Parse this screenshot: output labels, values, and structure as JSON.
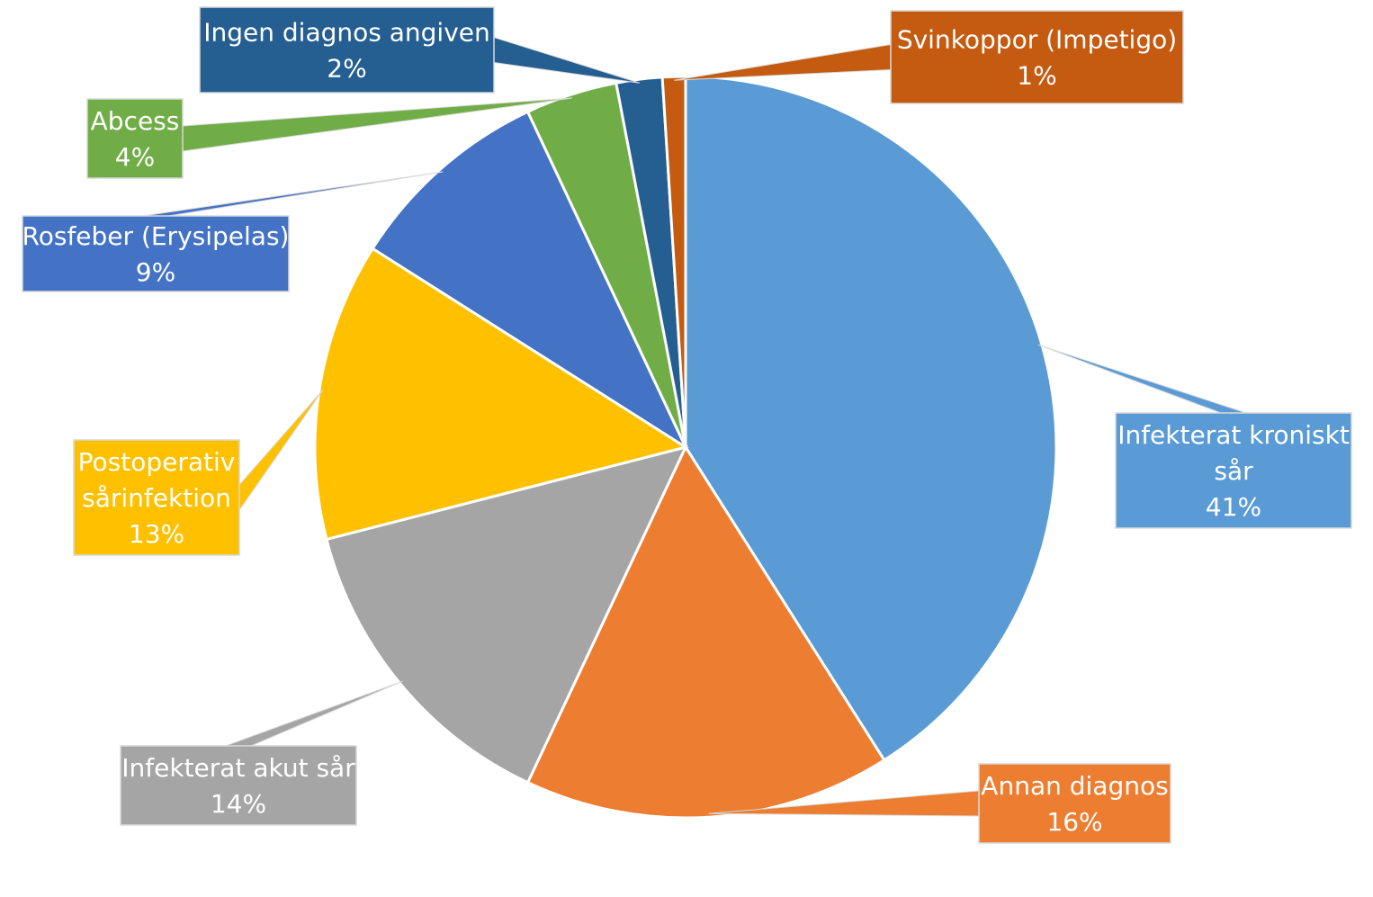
{
  "chart_data": {
    "type": "pie",
    "title": "",
    "start_angle_deg": 0,
    "direction": "clockwise",
    "slices": [
      {
        "label": "Infekterat kroniskt sår",
        "label_lines": [
          "Infekterat kroniskt",
          "sår"
        ],
        "value": 41,
        "value_label": "41%",
        "color": "#5B9BD5"
      },
      {
        "label": "Annan diagnos",
        "label_lines": [
          "Annan diagnos"
        ],
        "value": 16,
        "value_label": "16%",
        "color": "#ED7D31"
      },
      {
        "label": "Infekterat akut sår",
        "label_lines": [
          "Infekterat akut sår"
        ],
        "value": 14,
        "value_label": "14%",
        "color": "#A5A5A5"
      },
      {
        "label": "Postoperativ sårinfektion",
        "label_lines": [
          "Postoperativ",
          "sårinfektion"
        ],
        "value": 13,
        "value_label": "13%",
        "color": "#FFC000"
      },
      {
        "label": "Rosfeber (Erysipelas)",
        "label_lines": [
          "Rosfeber (Erysipelas)"
        ],
        "value": 9,
        "value_label": "9%",
        "color": "#4472C4"
      },
      {
        "label": "Abcess",
        "label_lines": [
          "Abcess"
        ],
        "value": 4,
        "value_label": "4%",
        "color": "#70AD47"
      },
      {
        "label": "Ingen diagnos angiven",
        "label_lines": [
          "Ingen diagnos angiven"
        ],
        "value": 2,
        "value_label": "2%",
        "color": "#255E91"
      },
      {
        "label": "Svinkoppor (Impetigo)",
        "label_lines": [
          "Svinkoppor (Impetigo)"
        ],
        "value": 1,
        "value_label": "1%",
        "color": "#C55A11"
      }
    ],
    "label_style": "callout",
    "legend": "none"
  }
}
